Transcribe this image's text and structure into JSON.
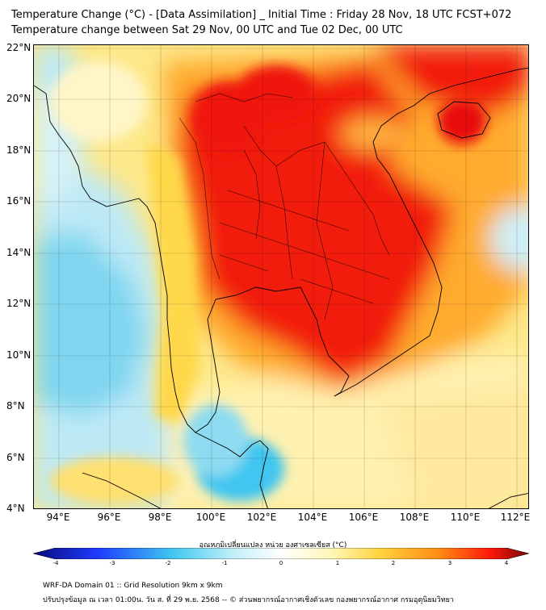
{
  "header": {
    "title_line1": "Temperature Change (°C) - [Data Assimilation] _ Initial Time : Friday 28 Nov, 18 UTC FCST+072",
    "title_line2": "Temperature change between Sat 29 Nov, 00 UTC and Tue 02 Dec, 00 UTC"
  },
  "map": {
    "lat_labels": [
      "22°N",
      "20°N",
      "18°N",
      "16°N",
      "14°N",
      "12°N",
      "10°N",
      "8°N",
      "6°N",
      "4°N"
    ],
    "lon_labels": [
      "94°E",
      "96°E",
      "98°E",
      "100°E",
      "102°E",
      "104°E",
      "106°E",
      "108°E",
      "110°E",
      "112°E"
    ],
    "lat_range": [
      4,
      22.2
    ],
    "lon_range": [
      93,
      112.5
    ]
  },
  "colorbar": {
    "title": "อุณหภูมิเปลี่ยนแปลง หน่วย องศาเซลเซียส (°C)",
    "ticks": [
      "-4",
      "-3",
      "-2",
      "-1",
      "0",
      "1",
      "2",
      "3",
      "4"
    ],
    "range": [
      -4,
      4
    ],
    "colors": {
      "deep_blue": "#0a0a7a",
      "blue": "#1e3cff",
      "cyan": "#3fc6f0",
      "light_cyan": "#bfeff8",
      "white": "#ffffff",
      "light_yellow": "#fff7b8",
      "yellow": "#ffd23c",
      "orange": "#ff8a14",
      "red": "#ff1a0a",
      "dark_red": "#7a0505"
    }
  },
  "footer": {
    "line1": "WRF-DA Domain 01 :: Grid Resolution 9km x 9km",
    "line2": "ปรับปรุงข้อมูล ณ เวลา 01:00น. วัน ส. ที่ 29 พ.ย. 2568 -- © ส่วนพยากรณ์อากาศเชิงตัวเลข กองพยากรณ์อากาศ กรมอุตุนิยมวิทยา"
  }
}
